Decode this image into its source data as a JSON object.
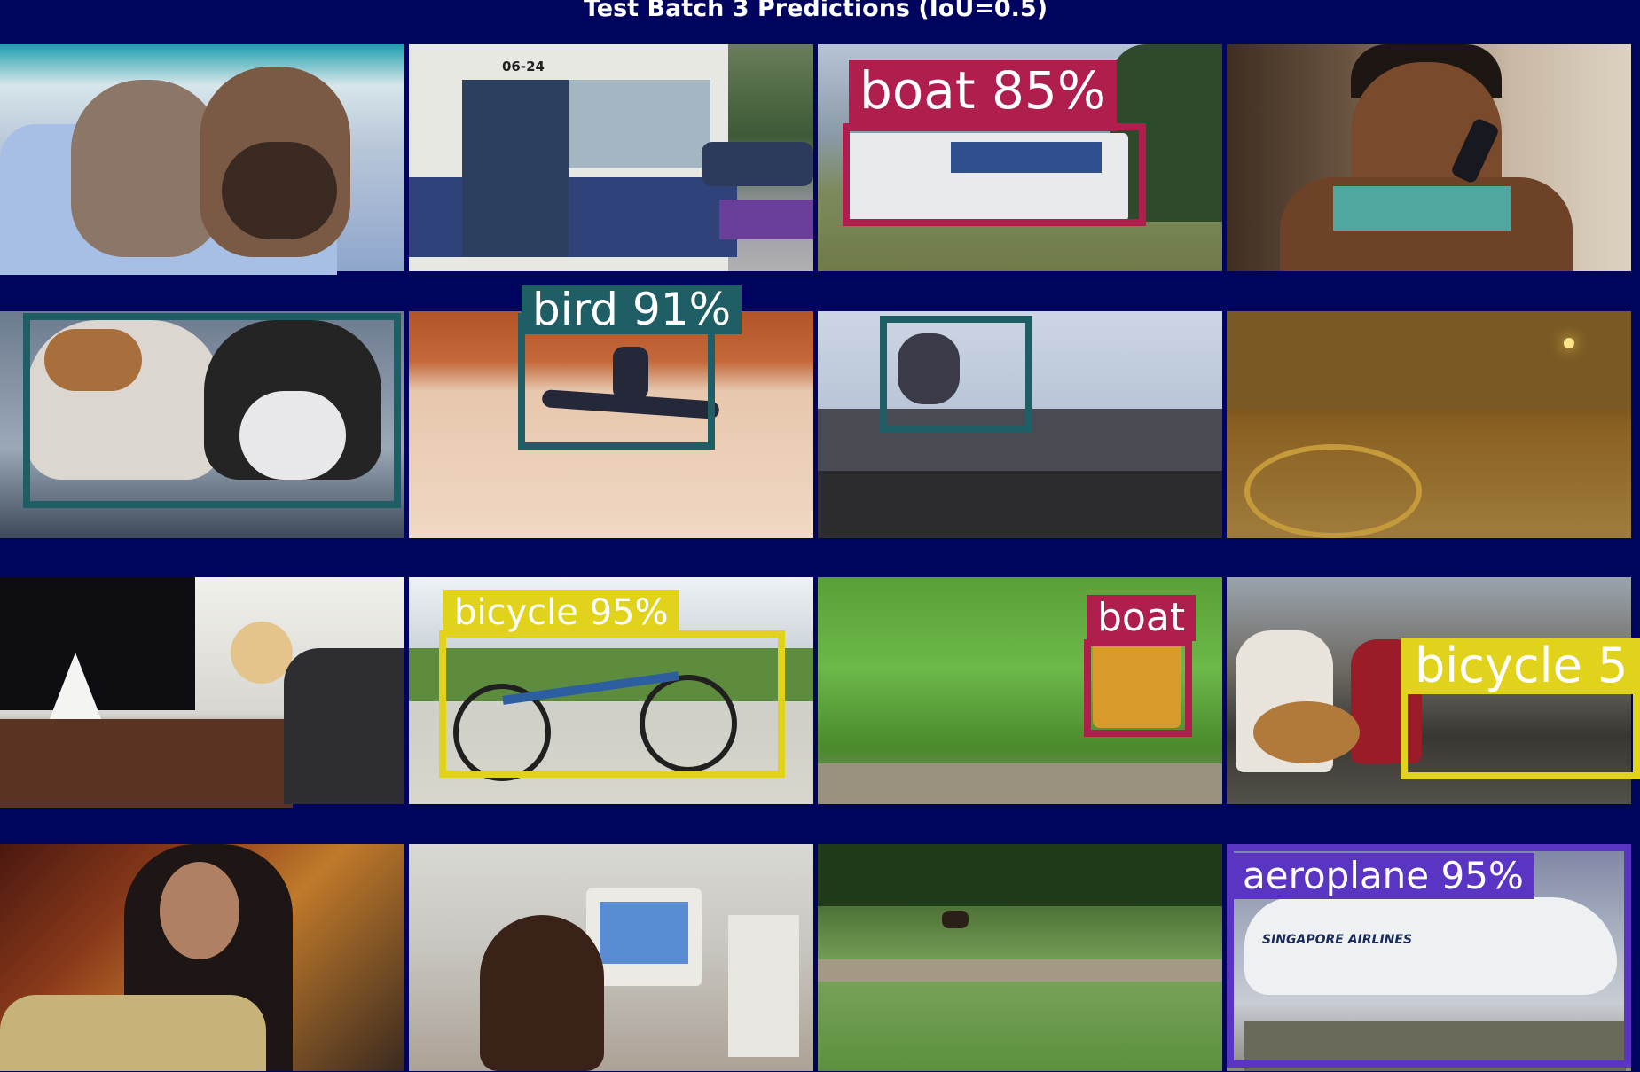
{
  "title": "Test Batch 3 Predictions (IoU=0.5)",
  "colors": {
    "background": "#00045f",
    "boat": "#b01e4e",
    "bird": "#1f5e64",
    "bicycle": "#e1d21c",
    "aeroplane": "#5a35c4",
    "cat": "#1f5e64"
  },
  "tiles": [
    {
      "row": 1,
      "col": 1,
      "scene": "two-cats-on-cushion",
      "detections": []
    },
    {
      "row": 1,
      "col": 2,
      "scene": "blue-bus-door-open",
      "detections": [],
      "texts": {
        "bus_number": "06-24"
      }
    },
    {
      "row": 1,
      "col": 3,
      "scene": "white-train",
      "detections": [
        {
          "label": "boat 85%",
          "color": "boat"
        }
      ]
    },
    {
      "row": 1,
      "col": 4,
      "scene": "woman-on-phone",
      "detections": []
    },
    {
      "row": 2,
      "col": 1,
      "scene": "two-cats-close",
      "detections": [
        {
          "label": "",
          "color": "cat"
        }
      ]
    },
    {
      "row": 2,
      "col": 2,
      "scene": "man-jumping-street",
      "detections": [
        {
          "label": "bird 91%",
          "color": "bird"
        }
      ]
    },
    {
      "row": 2,
      "col": 3,
      "scene": "person-leaping-sky",
      "detections": [
        {
          "label": "",
          "color": "bird"
        }
      ]
    },
    {
      "row": 2,
      "col": 4,
      "scene": "night-plaza",
      "detections": []
    },
    {
      "row": 3,
      "col": 1,
      "scene": "woman-christmas-village",
      "detections": []
    },
    {
      "row": 3,
      "col": 2,
      "scene": "blue-bicycle-driveway",
      "detections": [
        {
          "label": "bicycle 95%",
          "color": "bicycle"
        }
      ]
    },
    {
      "row": 3,
      "col": 3,
      "scene": "yellow-train-trees",
      "detections": [
        {
          "label": "boat",
          "color": "boat"
        }
      ]
    },
    {
      "row": 3,
      "col": 4,
      "scene": "people-guitar-porch",
      "detections": [
        {
          "label": "bicycle 5",
          "color": "bicycle"
        }
      ]
    },
    {
      "row": 4,
      "col": 1,
      "scene": "woman-singing-guitar",
      "detections": []
    },
    {
      "row": 4,
      "col": 2,
      "scene": "girl-at-computer",
      "detections": []
    },
    {
      "row": 4,
      "col": 3,
      "scene": "green-field-cattle",
      "detections": []
    },
    {
      "row": 4,
      "col": 4,
      "scene": "singapore-airlines-plane",
      "detections": [
        {
          "label": "aeroplane 95%",
          "color": "aeroplane"
        }
      ],
      "texts": {
        "airline": "SINGAPORE AIRLINES"
      }
    }
  ]
}
